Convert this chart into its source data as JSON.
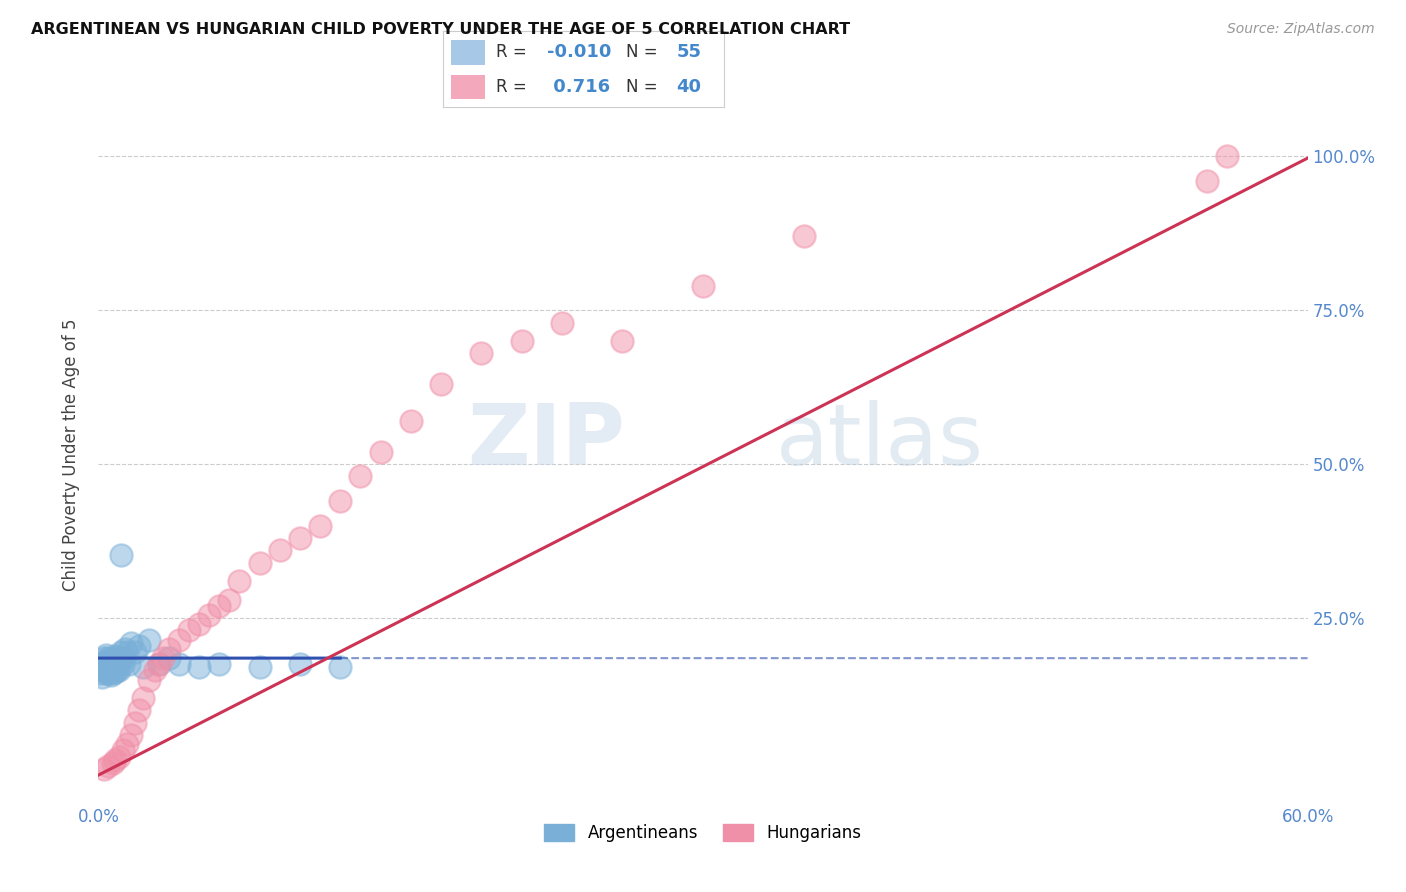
{
  "title": "ARGENTINEAN VS HUNGARIAN CHILD POVERTY UNDER THE AGE OF 5 CORRELATION CHART",
  "source": "Source: ZipAtlas.com",
  "ylabel": "Child Poverty Under the Age of 5",
  "argentina_color": "#7ab0d8",
  "hungary_color": "#f090a8",
  "argentina_line_color": "#3050b0",
  "hungary_line_color": "#cc3355",
  "watermark_zip": "ZIP",
  "watermark_atlas": "atlas",
  "background_color": "#ffffff",
  "grid_color": "#cccccc",
  "xlim": [
    0.0,
    0.6
  ],
  "ylim": [
    -0.05,
    1.08
  ],
  "legend_R1": "-0.010",
  "legend_N1": "55",
  "legend_R2": "0.716",
  "legend_N2": "40",
  "legend_color1": "#a8c8e8",
  "legend_color2": "#f4a8bc",
  "argentina_x": [
    0.001,
    0.001,
    0.002,
    0.002,
    0.003,
    0.003,
    0.003,
    0.004,
    0.004,
    0.004,
    0.004,
    0.005,
    0.005,
    0.005,
    0.005,
    0.005,
    0.005,
    0.006,
    0.006,
    0.006,
    0.006,
    0.007,
    0.007,
    0.007,
    0.007,
    0.008,
    0.008,
    0.008,
    0.008,
    0.009,
    0.009,
    0.009,
    0.01,
    0.01,
    0.01,
    0.011,
    0.011,
    0.012,
    0.012,
    0.013,
    0.014,
    0.015,
    0.016,
    0.018,
    0.02,
    0.022,
    0.025,
    0.03,
    0.035,
    0.04,
    0.05,
    0.06,
    0.08,
    0.1,
    0.12
  ],
  "argentina_y": [
    0.175,
    0.16,
    0.155,
    0.17,
    0.165,
    0.175,
    0.185,
    0.16,
    0.17,
    0.18,
    0.19,
    0.16,
    0.165,
    0.17,
    0.175,
    0.18,
    0.185,
    0.158,
    0.165,
    0.172,
    0.18,
    0.16,
    0.168,
    0.175,
    0.183,
    0.162,
    0.17,
    0.178,
    0.188,
    0.165,
    0.172,
    0.182,
    0.165,
    0.175,
    0.185,
    0.352,
    0.195,
    0.175,
    0.185,
    0.2,
    0.195,
    0.175,
    0.21,
    0.195,
    0.205,
    0.17,
    0.215,
    0.175,
    0.185,
    0.175,
    0.17,
    0.175,
    0.17,
    0.175,
    0.17
  ],
  "hungary_x": [
    0.003,
    0.005,
    0.007,
    0.008,
    0.01,
    0.012,
    0.014,
    0.016,
    0.018,
    0.02,
    0.022,
    0.025,
    0.028,
    0.03,
    0.032,
    0.035,
    0.04,
    0.045,
    0.05,
    0.055,
    0.06,
    0.065,
    0.07,
    0.08,
    0.09,
    0.1,
    0.11,
    0.12,
    0.13,
    0.14,
    0.155,
    0.17,
    0.19,
    0.21,
    0.23,
    0.26,
    0.3,
    0.35,
    0.55,
    0.56
  ],
  "hungary_y": [
    0.005,
    0.01,
    0.015,
    0.02,
    0.025,
    0.035,
    0.045,
    0.06,
    0.08,
    0.1,
    0.12,
    0.15,
    0.165,
    0.175,
    0.185,
    0.2,
    0.215,
    0.23,
    0.24,
    0.255,
    0.27,
    0.28,
    0.31,
    0.34,
    0.36,
    0.38,
    0.4,
    0.44,
    0.48,
    0.52,
    0.57,
    0.63,
    0.68,
    0.7,
    0.73,
    0.7,
    0.79,
    0.87,
    0.96,
    1.0
  ]
}
